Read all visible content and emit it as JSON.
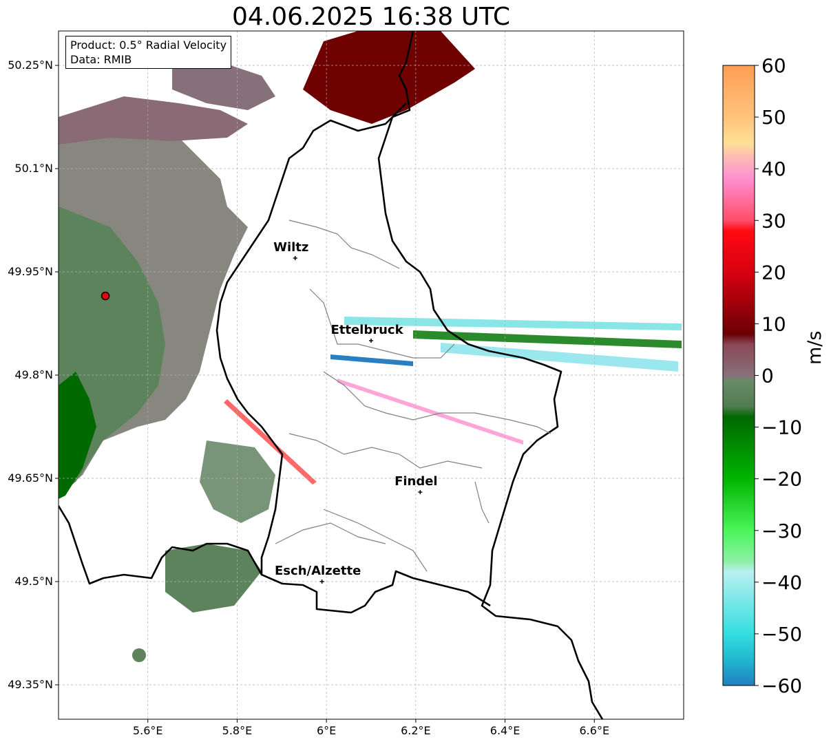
{
  "title": "04.06.2025 16:38 UTC",
  "info": {
    "product_label": "Product: 0.5° Radial Velocity",
    "data_label": "Data: RMIB"
  },
  "map": {
    "lon_range": [
      5.4,
      6.8
    ],
    "lat_range": [
      49.3,
      50.3
    ],
    "x_ticks": [
      "5.6°E",
      "5.8°E",
      "6°E",
      "6.2°E",
      "6.4°E",
      "6.6°E"
    ],
    "x_tick_values": [
      5.6,
      5.8,
      6.0,
      6.2,
      6.4,
      6.6
    ],
    "y_ticks": [
      "50.25°N",
      "50.1°N",
      "49.95°N",
      "49.8°N",
      "49.65°N",
      "49.5°N",
      "49.35°N"
    ],
    "y_tick_values": [
      50.25,
      50.1,
      49.95,
      49.8,
      49.65,
      49.5,
      49.35
    ],
    "grid": true,
    "radar_site": {
      "lon": 5.505,
      "lat": 49.915,
      "color": "#e8000b"
    },
    "cities": [
      {
        "name": "Wiltz",
        "lon": 5.93,
        "lat": 49.97
      },
      {
        "name": "Ettelbruck",
        "lon": 6.1,
        "lat": 49.85
      },
      {
        "name": "Findel",
        "lon": 6.21,
        "lat": 49.63
      },
      {
        "name": "Esch/Alzette",
        "lon": 5.99,
        "lat": 49.5
      }
    ]
  },
  "colorbar": {
    "label": "m/s",
    "min": -60,
    "max": 60,
    "ticks": [
      "60",
      "50",
      "40",
      "30",
      "20",
      "10",
      "0",
      "−10",
      "−20",
      "−30",
      "−40",
      "−50",
      "−60"
    ],
    "tick_values": [
      60,
      50,
      40,
      30,
      20,
      10,
      0,
      -10,
      -20,
      -30,
      -40,
      -50,
      -60
    ],
    "stops": [
      {
        "v": 60,
        "c": "#ff9e55"
      },
      {
        "v": 50,
        "c": "#ffc27a"
      },
      {
        "v": 45,
        "c": "#ffe096"
      },
      {
        "v": 42,
        "c": "#ffb8b8"
      },
      {
        "v": 38,
        "c": "#ff8fd0"
      },
      {
        "v": 30,
        "c": "#ff4d6a"
      },
      {
        "v": 28,
        "c": "#ff0a12"
      },
      {
        "v": 20,
        "c": "#d80010"
      },
      {
        "v": 8,
        "c": "#6a0004"
      },
      {
        "v": 6,
        "c": "#8a4855"
      },
      {
        "v": 0,
        "c": "#88707a"
      },
      {
        "v": -1,
        "c": "#6a8a6a"
      },
      {
        "v": -6,
        "c": "#4f7d4f"
      },
      {
        "v": -8,
        "c": "#006800"
      },
      {
        "v": -20,
        "c": "#00b400"
      },
      {
        "v": -30,
        "c": "#4bf55a"
      },
      {
        "v": -36,
        "c": "#8ef0a6"
      },
      {
        "v": -38,
        "c": "#b8f0f0"
      },
      {
        "v": -50,
        "c": "#34dede"
      },
      {
        "v": -55,
        "c": "#20b8d0"
      },
      {
        "v": -60,
        "c": "#2080c0"
      }
    ]
  }
}
